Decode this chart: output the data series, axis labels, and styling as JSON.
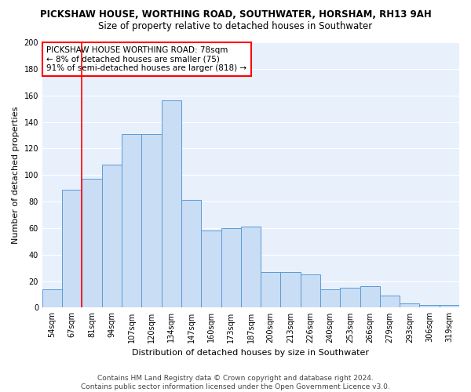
{
  "title": "PICKSHAW HOUSE, WORTHING ROAD, SOUTHWATER, HORSHAM, RH13 9AH",
  "subtitle": "Size of property relative to detached houses in Southwater",
  "xlabel": "Distribution of detached houses by size in Southwater",
  "ylabel": "Number of detached properties",
  "categories": [
    "54sqm",
    "67sqm",
    "81sqm",
    "94sqm",
    "107sqm",
    "120sqm",
    "134sqm",
    "147sqm",
    "160sqm",
    "173sqm",
    "187sqm",
    "200sqm",
    "213sqm",
    "226sqm",
    "240sqm",
    "253sqm",
    "266sqm",
    "279sqm",
    "293sqm",
    "306sqm",
    "319sqm"
  ],
  "values": [
    14,
    89,
    97,
    108,
    131,
    131,
    156,
    81,
    58,
    60,
    61,
    27,
    27,
    25,
    14,
    15,
    16,
    9,
    3,
    2,
    2
  ],
  "bar_color": "#c9ddf5",
  "bar_edge_color": "#5b9bd5",
  "red_line_x": 1.5,
  "annotation_lines": [
    "PICKSHAW HOUSE WORTHING ROAD: 78sqm",
    "← 8% of detached houses are smaller (75)",
    "91% of semi-detached houses are larger (818) →"
  ],
  "ylim": [
    0,
    200
  ],
  "yticks": [
    0,
    20,
    40,
    60,
    80,
    100,
    120,
    140,
    160,
    180,
    200
  ],
  "footer_line1": "Contains HM Land Registry data © Crown copyright and database right 2024.",
  "footer_line2": "Contains public sector information licensed under the Open Government Licence v3.0.",
  "fig_bg_color": "#ffffff",
  "ax_bg_color": "#e8f0fc",
  "grid_color": "#ffffff",
  "title_fontsize": 8.5,
  "subtitle_fontsize": 8.5,
  "axis_label_fontsize": 8,
  "tick_fontsize": 7,
  "annotation_fontsize": 7.5,
  "footer_fontsize": 6.5
}
